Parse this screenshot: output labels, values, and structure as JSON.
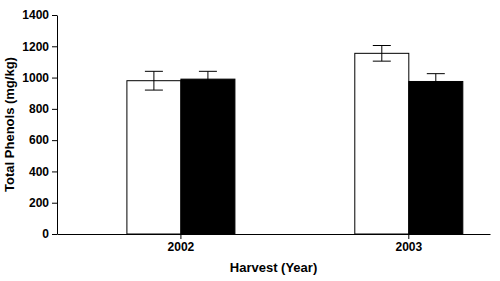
{
  "chart_data": {
    "type": "bar",
    "categories": [
      "2002",
      "2003"
    ],
    "series": [
      {
        "color": "#ffffff",
        "values": [
          980,
          1155
        ],
        "errors": [
          60,
          50
        ]
      },
      {
        "color": "#000000",
        "values": [
          990,
          975
        ],
        "errors": [
          50,
          50
        ]
      }
    ],
    "x_label": "Harvest (Year)",
    "y_label": "Total Phenols (mg/kg)",
    "ylim": [
      0,
      1400
    ],
    "yticks": [
      0,
      200,
      400,
      600,
      800,
      1000,
      1200,
      1400
    ],
    "grid": false
  }
}
